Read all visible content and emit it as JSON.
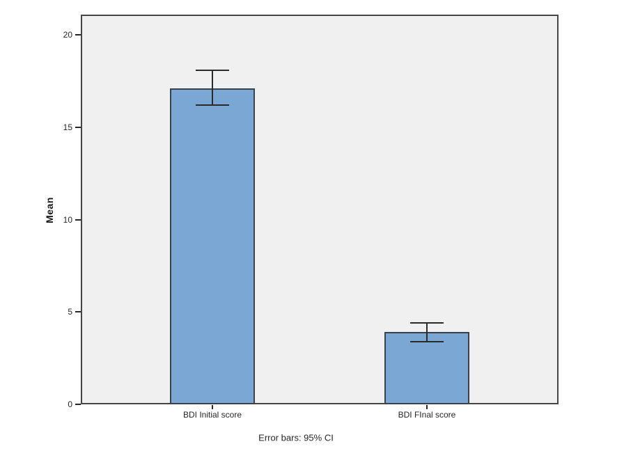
{
  "chart_data": {
    "type": "bar",
    "title": "",
    "ylabel": "Mean",
    "xlabel": "",
    "caption": "Error bars: 95% CI",
    "categories": [
      "BDI Initial score",
      "BDI FInal score"
    ],
    "series": [
      {
        "name": "Mean",
        "values": [
          17.1,
          3.9
        ]
      }
    ],
    "error_bars": {
      "kind": "95% CI",
      "low": [
        16.2,
        3.4
      ],
      "high": [
        18.1,
        4.4
      ]
    },
    "ylim": [
      0,
      21.1
    ],
    "yticks": [
      0,
      5,
      10,
      15,
      20
    ],
    "grid": false,
    "legend": "none",
    "colors": {
      "bar_fill": "#7aa7d3",
      "bar_border": "#3a4149",
      "error_bar": "#2a2a2a",
      "plot_background": "#f0f0f0",
      "plot_frame": "#454545",
      "page_background": "#ffffff",
      "text": "#262626"
    }
  }
}
